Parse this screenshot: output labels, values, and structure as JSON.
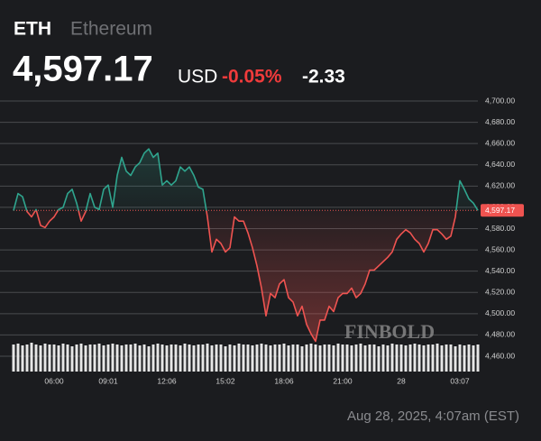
{
  "header": {
    "symbol": "ETH",
    "name": "Ethereum",
    "price": "4,597.17",
    "currency": "USD",
    "change_pct": "-0.05%",
    "change": "-2.33"
  },
  "footer": {
    "timestamp": "Aug 28, 2025, 4:07am (EST)"
  },
  "chart_data": {
    "type": "line",
    "watermark": "FINBOLD",
    "values": [
      4597,
      4613,
      4610,
      4596,
      4591,
      4598,
      4583,
      4581,
      4587,
      4591,
      4598,
      4600,
      4613,
      4617,
      4604,
      4587,
      4596,
      4613,
      4600,
      4598,
      4617,
      4621,
      4600,
      4630,
      4647,
      4634,
      4630,
      4638,
      4642,
      4651,
      4655,
      4647,
      4651,
      4621,
      4625,
      4621,
      4625,
      4638,
      4634,
      4638,
      4630,
      4619,
      4617,
      4591,
      4558,
      4570,
      4566,
      4558,
      4562,
      4591,
      4587,
      4587,
      4576,
      4562,
      4545,
      4524,
      4498,
      4519,
      4515,
      4528,
      4532,
      4515,
      4511,
      4498,
      4507,
      4490,
      4481,
      4474,
      4494,
      4494,
      4507,
      4502,
      4515,
      4519,
      4519,
      4524,
      4515,
      4519,
      4528,
      4541,
      4541,
      4545,
      4549,
      4553,
      4558,
      4570,
      4575,
      4579,
      4576,
      4570,
      4566,
      4558,
      4566,
      4579,
      4579,
      4575,
      4570,
      4573,
      4591,
      4625,
      4617,
      4608,
      4604,
      4597.17
    ],
    "volume": [
      30,
      31,
      29,
      30,
      32,
      30,
      29,
      31,
      30,
      30,
      29,
      31,
      30,
      28,
      30,
      31,
      29,
      30,
      30,
      31,
      29,
      30,
      31,
      30,
      29,
      30,
      30,
      31,
      29,
      30,
      28,
      30,
      31,
      30,
      29,
      30,
      30,
      29,
      31,
      30,
      29,
      30,
      30,
      31,
      29,
      30,
      30,
      28,
      30,
      29,
      31,
      30,
      30,
      29,
      30,
      31,
      30,
      29,
      30,
      30,
      31,
      29,
      30,
      30,
      28,
      30,
      31,
      30,
      29,
      30,
      30,
      29,
      31,
      30,
      30,
      29,
      30,
      31,
      29,
      30,
      30,
      28,
      30,
      29,
      31,
      30,
      30,
      29,
      30,
      31,
      30,
      29,
      30,
      30,
      31,
      29,
      30,
      30,
      28,
      30,
      29,
      30,
      29,
      30
    ],
    "up_color": "#2fa58e",
    "down_color": "#ef5350",
    "volume_color": "#e6e6e6",
    "price_tag": {
      "value": 4597.17,
      "label": "4,597.17"
    },
    "ylim": [
      4460,
      4700
    ],
    "yticks": [
      {
        "value": 4460,
        "label": "4,460.00"
      },
      {
        "value": 4480,
        "label": "4,480.00"
      },
      {
        "value": 4500,
        "label": "4,500.00"
      },
      {
        "value": 4520,
        "label": "4,520.00"
      },
      {
        "value": 4540,
        "label": "4,540.00"
      },
      {
        "value": 4560,
        "label": "4,560.00"
      },
      {
        "value": 4580,
        "label": "4,580.00"
      },
      {
        "value": 4600,
        "label": "4,600.00"
      },
      {
        "value": 4620,
        "label": "4,620.00"
      },
      {
        "value": 4640,
        "label": "4,640.00"
      },
      {
        "value": 4660,
        "label": "4,660.00"
      },
      {
        "value": 4680,
        "label": "4,680.00"
      },
      {
        "value": 4700,
        "label": "4,700.00"
      }
    ],
    "xticks": [
      {
        "value": 9,
        "label": "06:00"
      },
      {
        "value": 21,
        "label": "09:01"
      },
      {
        "value": 34,
        "label": "12:06"
      },
      {
        "value": 47,
        "label": "15:02"
      },
      {
        "value": 60,
        "label": "18:06"
      },
      {
        "value": 73,
        "label": "21:00"
      },
      {
        "value": 86,
        "label": "28"
      },
      {
        "value": 99,
        "label": "03:07"
      }
    ],
    "grid": true
  }
}
